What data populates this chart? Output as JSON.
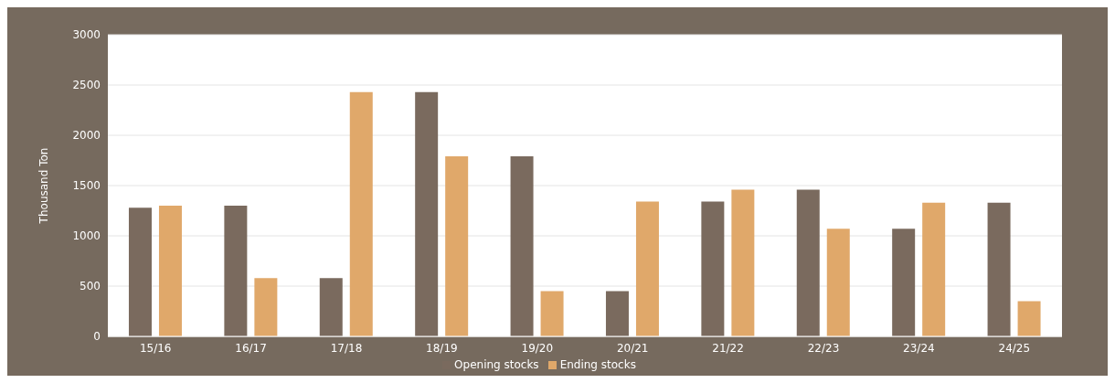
{
  "chart_data": {
    "type": "bar",
    "ylabel": "Thousand Ton",
    "categories": [
      "15/16",
      "16/17",
      "17/18",
      "18/19",
      "19/20",
      "20/21",
      "21/22",
      "22/23",
      "23/24",
      "24/25"
    ],
    "series": [
      {
        "name": "Opening stocks",
        "color": "#7a6a5e",
        "values": [
          1280,
          1300,
          580,
          2430,
          1790,
          450,
          1340,
          1460,
          1070,
          1330
        ]
      },
      {
        "name": "Ending stocks",
        "color": "#e0a86a",
        "values": [
          1300,
          580,
          2430,
          1790,
          450,
          1340,
          1460,
          1070,
          1330,
          350
        ]
      }
    ],
    "ylim": [
      0,
      3000
    ],
    "yticks": [
      0,
      500,
      1000,
      1500,
      2000,
      2500,
      3000
    ],
    "grid": "y",
    "legend": "bottom"
  }
}
